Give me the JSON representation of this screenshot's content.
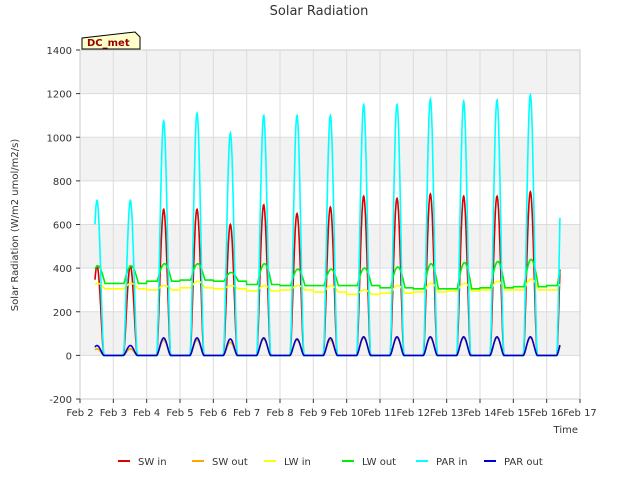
{
  "chart_data": {
    "type": "line",
    "title": "Solar Radiation",
    "xlabel": "Time",
    "ylabel": "Solar Radiation (W/m2 umol/m2/s)",
    "site_label": "DC_met",
    "xlim": [
      2,
      17
    ],
    "ylim": [
      -200,
      1400
    ],
    "x_ticks": [
      {
        "v": 2,
        "label": "Feb 2"
      },
      {
        "v": 3,
        "label": "Feb 3"
      },
      {
        "v": 4,
        "label": "Feb 4"
      },
      {
        "v": 5,
        "label": "Feb 5"
      },
      {
        "v": 6,
        "label": "Feb 6"
      },
      {
        "v": 7,
        "label": "Feb 7"
      },
      {
        "v": 8,
        "label": "Feb 8"
      },
      {
        "v": 9,
        "label": "Feb 9"
      },
      {
        "v": 10,
        "label": "Feb 10"
      },
      {
        "v": 11,
        "label": "Feb 11"
      },
      {
        "v": 12,
        "label": "Feb 12"
      },
      {
        "v": 13,
        "label": "Feb 13"
      },
      {
        "v": 14,
        "label": "Feb 14"
      },
      {
        "v": 15,
        "label": "Feb 15"
      },
      {
        "v": 16,
        "label": "Feb 16"
      },
      {
        "v": 17,
        "label": "Feb 17"
      }
    ],
    "y_ticks": [
      {
        "v": -200,
        "label": "-200"
      },
      {
        "v": 0,
        "label": "0"
      },
      {
        "v": 200,
        "label": "200"
      },
      {
        "v": 400,
        "label": "400"
      },
      {
        "v": 600,
        "label": "600"
      },
      {
        "v": 800,
        "label": "800"
      },
      {
        "v": 1000,
        "label": "1000"
      },
      {
        "v": 1200,
        "label": "1200"
      },
      {
        "v": 1400,
        "label": "1400"
      }
    ],
    "grid": true,
    "legend_position": "bottom",
    "day_start": 2.45,
    "day_end": 16.4,
    "series": [
      {
        "name": "SW in",
        "color": "#dd0000",
        "kind": "solar",
        "peaks": [
          410,
          670,
          670,
          600,
          690,
          650,
          680,
          730,
          720,
          740,
          730,
          730,
          750,
          750
        ]
      },
      {
        "name": "SW out",
        "color": "#ffa500",
        "kind": "solar",
        "peaks": [
          30,
          70,
          70,
          60,
          75,
          70,
          70,
          80,
          80,
          80,
          80,
          80,
          80,
          80
        ]
      },
      {
        "name": "LW in",
        "color": "#ffff00",
        "kind": "lw",
        "base": [
          305,
          300,
          310,
          305,
          295,
          300,
          290,
          280,
          285,
          290,
          295,
          300,
          300,
          300
        ],
        "peaks": [
          330,
          320,
          340,
          320,
          320,
          320,
          320,
          300,
          320,
          330,
          330,
          340,
          350,
          350
        ]
      },
      {
        "name": "LW out",
        "color": "#00ee00",
        "kind": "lw",
        "base": [
          330,
          340,
          345,
          340,
          325,
          320,
          320,
          320,
          310,
          305,
          305,
          310,
          315,
          320
        ],
        "peaks": [
          410,
          420,
          420,
          380,
          420,
          395,
          395,
          400,
          405,
          420,
          425,
          430,
          440,
          445
        ]
      },
      {
        "name": "PAR in",
        "color": "#00ffff",
        "kind": "solar",
        "peaks": [
          710,
          1075,
          1110,
          1020,
          1100,
          1100,
          1100,
          1150,
          1150,
          1175,
          1165,
          1170,
          1195,
          1200
        ]
      },
      {
        "name": "PAR out",
        "color": "#0000cc",
        "kind": "solar",
        "peaks": [
          45,
          80,
          80,
          75,
          80,
          75,
          80,
          85,
          85,
          85,
          85,
          85,
          85,
          90
        ]
      }
    ]
  }
}
